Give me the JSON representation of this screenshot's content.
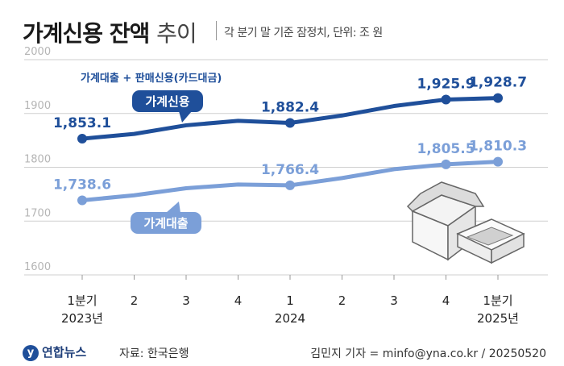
{
  "header": {
    "title_bold": "가계신용 잔액",
    "title_light": "추이",
    "subtitle": "각 분기 말 기준 잠정치, 단위: 조 원"
  },
  "chart_data": {
    "type": "line",
    "ylim": [
      1600,
      2000
    ],
    "yticks": [
      1600,
      1700,
      1800,
      1900,
      2000
    ],
    "categories": [
      "1분기 2023년",
      "2",
      "3",
      "4",
      "1 2024",
      "2",
      "3",
      "4",
      "1분기 2025년"
    ],
    "x_labels": [
      [
        "1분기",
        "2023년"
      ],
      [
        "2",
        ""
      ],
      [
        "3",
        ""
      ],
      [
        "4",
        ""
      ],
      [
        "1",
        "2024"
      ],
      [
        "2",
        ""
      ],
      [
        "3",
        ""
      ],
      [
        "4",
        ""
      ],
      [
        "1분기",
        "2025년"
      ]
    ],
    "series": [
      {
        "name": "가계신용",
        "description": "가계대출 + 판매신용(카드대금)",
        "color": "#1f4f9a",
        "values": [
          1853.1,
          1862.0,
          1878.0,
          1886.4,
          1882.4,
          1896.2,
          1913.8,
          1925.9,
          1928.7
        ],
        "labels": [
          {
            "index": 0,
            "text": "1,853.1"
          },
          {
            "index": 4,
            "text": "1,882.4"
          },
          {
            "index": 7,
            "text": "1,925.9"
          },
          {
            "index": 8,
            "text": "1,928.7"
          }
        ]
      },
      {
        "name": "가계대출",
        "color": "#7b9fd8",
        "values": [
          1738.6,
          1748.0,
          1761.0,
          1768.0,
          1766.4,
          1780.0,
          1796.4,
          1805.5,
          1810.3
        ],
        "labels": [
          {
            "index": 0,
            "text": "1,738.6"
          },
          {
            "index": 4,
            "text": "1,766.4"
          },
          {
            "index": 7,
            "text": "1,805.5"
          },
          {
            "index": 8,
            "text": "1,810.3"
          }
        ]
      }
    ],
    "grid": true
  },
  "footer": {
    "logo_text": "연합뉴스",
    "source": "자료: 한국은행",
    "credit": "김민지 기자 = minfo@yna.co.kr / 20250520"
  }
}
